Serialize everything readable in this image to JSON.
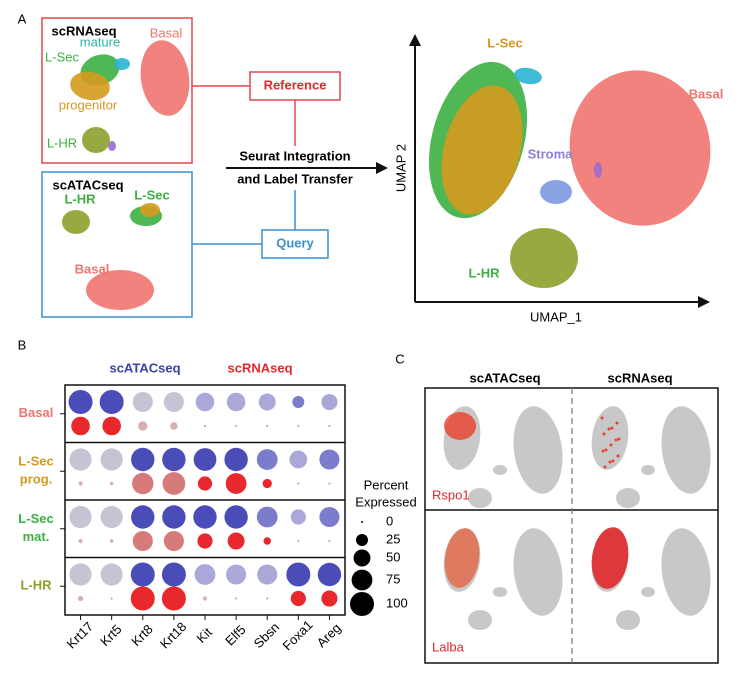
{
  "panel_a": {
    "label": "A",
    "reference": {
      "title": "scRNAseq",
      "clusters": [
        "mature",
        "L-Sec",
        "progenitor",
        "Basal",
        "L-HR"
      ],
      "box_label": "Reference"
    },
    "query": {
      "title": "scATACseq",
      "clusters": [
        "L-HR",
        "L-Sec",
        "Basal"
      ],
      "box_label": "Query"
    },
    "method_lines": [
      "Seurat Integration",
      "and Label Transfer"
    ],
    "umap": {
      "y_label": "UMAP 2",
      "x_label": "UMAP_1",
      "clusters": [
        "L-Sec",
        "Basal",
        "Stroma",
        "L-HR"
      ]
    }
  },
  "panel_b": {
    "label": "B",
    "type": "dotplot",
    "assays": [
      {
        "name": "scATACseq",
        "color": "#3b3fa8"
      },
      {
        "name": "scRNAseq",
        "color": "#e0282e"
      }
    ],
    "genes": [
      "Krt17",
      "Krt5",
      "Krt8",
      "Krt18",
      "Kit",
      "Elf5",
      "Sbsn",
      "Foxa1",
      "Areg"
    ],
    "groups": [
      {
        "label_lines": [
          "Basal"
        ],
        "color": "#f07470",
        "atac": {
          "values": [
            100,
            100,
            70,
            70,
            60,
            60,
            50,
            25,
            45
          ],
          "colors": [
            "#4a4cb8",
            "#4a4cb8",
            "#c4c4d4",
            "#c4c4d4",
            "#a9a8d8",
            "#a9a8d8",
            "#a9a8d8",
            "#7c7ccc",
            "#a9a8d8"
          ]
        },
        "rna": {
          "values": [
            60,
            60,
            15,
            10,
            1,
            1,
            1,
            1,
            1
          ],
          "colors": [
            "#e8282c",
            "#e8282c",
            "#d9aeae",
            "#d9aeae",
            "#d9aeae",
            "#d9aeae",
            "#d9aeae",
            "#d9aeae",
            "#d9aeae"
          ]
        }
      },
      {
        "label_lines": [
          "L-Sec",
          "prog."
        ],
        "color": "#d49a1e",
        "atac": {
          "values": [
            85,
            85,
            95,
            95,
            90,
            95,
            75,
            55,
            70
          ],
          "colors": [
            "#c4c4d4",
            "#c4c4d4",
            "#4a4cb8",
            "#4a4cb8",
            "#4a4cb8",
            "#4a4cb8",
            "#7c7ccc",
            "#a9a8d8",
            "#7c7ccc"
          ]
        },
        "rna": {
          "values": [
            3,
            2,
            80,
            90,
            35,
            75,
            15,
            1,
            1
          ],
          "colors": [
            "#d9aeae",
            "#d9aeae",
            "#d77a7a",
            "#d77a7a",
            "#e8282c",
            "#e8282c",
            "#e8282c",
            "#d9aeae",
            "#d9aeae"
          ]
        }
      },
      {
        "label_lines": [
          "L-Sec",
          "mat."
        ],
        "color": "#3cb043",
        "atac": {
          "values": [
            85,
            85,
            95,
            95,
            95,
            95,
            75,
            40,
            70
          ],
          "colors": [
            "#c4c4d4",
            "#c4c4d4",
            "#4a4cb8",
            "#4a4cb8",
            "#4a4cb8",
            "#4a4cb8",
            "#7c7ccc",
            "#a9a8d8",
            "#7c7ccc"
          ]
        },
        "rna": {
          "values": [
            3,
            2,
            70,
            70,
            40,
            50,
            10,
            1,
            1
          ],
          "colors": [
            "#d9aeae",
            "#d9aeae",
            "#d77a7a",
            "#d77a7a",
            "#e8282c",
            "#e8282c",
            "#e8282c",
            "#d9aeae",
            "#d9aeae"
          ]
        }
      },
      {
        "label_lines": [
          "L-HR"
        ],
        "color": "#8ca02c",
        "atac": {
          "values": [
            85,
            85,
            100,
            100,
            75,
            70,
            70,
            100,
            95
          ],
          "colors": [
            "#c4c4d4",
            "#c4c4d4",
            "#4a4cb8",
            "#4a4cb8",
            "#a9a8d8",
            "#a9a8d8",
            "#a9a8d8",
            "#4a4cb8",
            "#4a4cb8"
          ]
        },
        "rna": {
          "values": [
            5,
            1,
            100,
            100,
            3,
            1,
            1,
            40,
            45
          ],
          "colors": [
            "#d9aeae",
            "#d9aeae",
            "#e8282c",
            "#e8282c",
            "#d9aeae",
            "#d9aeae",
            "#d9aeae",
            "#e8282c",
            "#e8282c"
          ]
        }
      }
    ],
    "legend": {
      "title_lines": [
        "Percent",
        "Expressed"
      ],
      "values": [
        0,
        25,
        50,
        75,
        100
      ]
    }
  },
  "panel_c": {
    "label": "C",
    "columns": [
      "scATACseq",
      "scRNAseq"
    ],
    "genes": [
      "Rspo1",
      "Lalba"
    ]
  }
}
